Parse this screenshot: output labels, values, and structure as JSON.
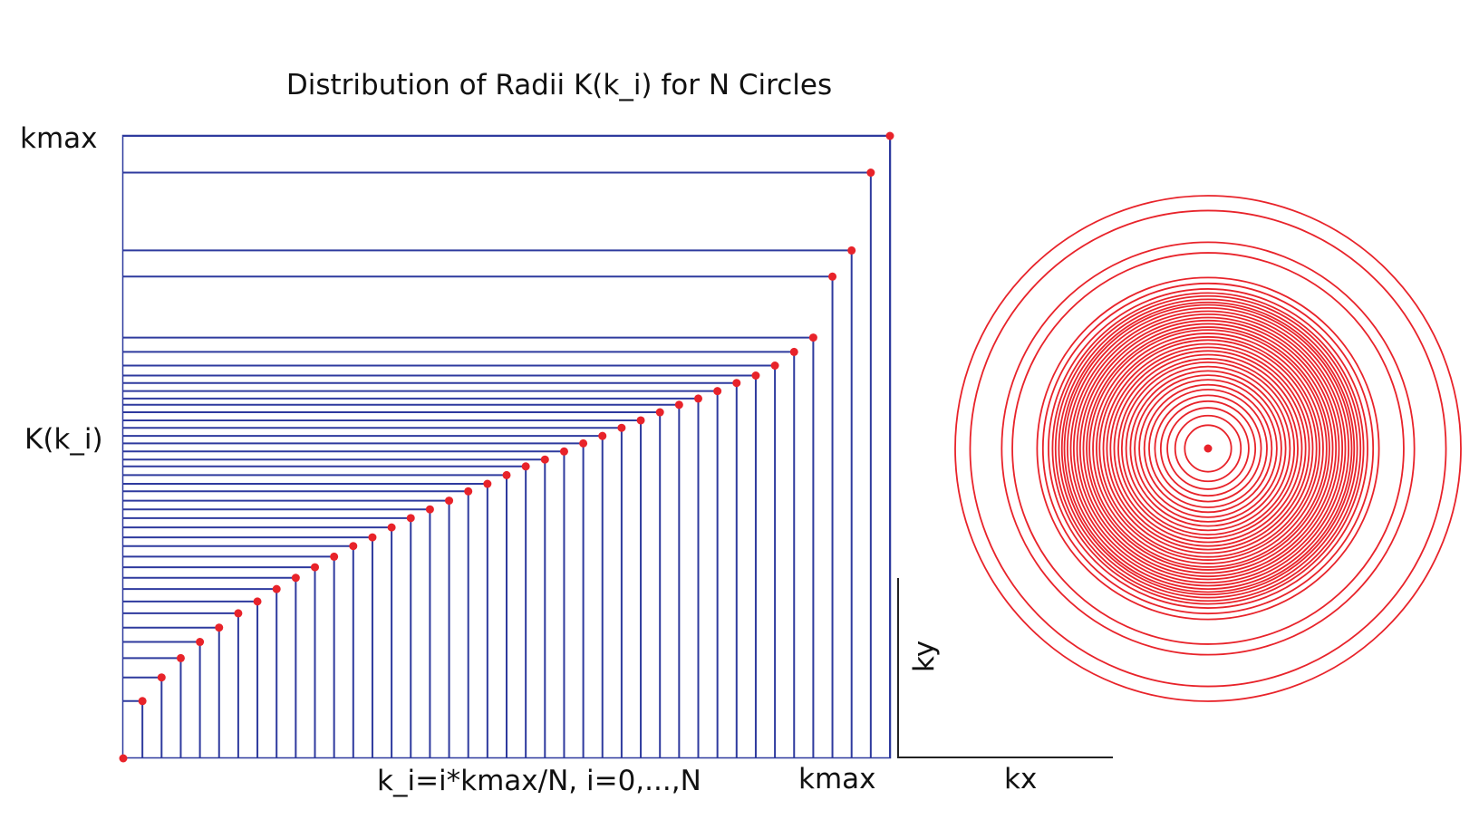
{
  "title": "Distribution of Radii K(k_i) for N Circles",
  "y_axis": {
    "top_label": "kmax",
    "mid_label": "K(k_i)"
  },
  "x_axis": {
    "formula_label": "k_i=i*kmax/N, i=0,...,N",
    "end_label": "kmax"
  },
  "circle_axes": {
    "x_label": "kx",
    "y_label": "ky"
  },
  "chart_data": {
    "type": "step",
    "n_circles": 40,
    "series_color": "#2e3a9e",
    "point_color": "#e8232a",
    "circle_color": "#e8232a",
    "points": [
      [
        0.0,
        0.0
      ],
      [
        0.025,
        0.092
      ],
      [
        0.05,
        0.13
      ],
      [
        0.075,
        0.161
      ],
      [
        0.1,
        0.187
      ],
      [
        0.125,
        0.21
      ],
      [
        0.15,
        0.233
      ],
      [
        0.175,
        0.252
      ],
      [
        0.2,
        0.272
      ],
      [
        0.225,
        0.29
      ],
      [
        0.25,
        0.307
      ],
      [
        0.275,
        0.324
      ],
      [
        0.3,
        0.341
      ],
      [
        0.325,
        0.355
      ],
      [
        0.35,
        0.371
      ],
      [
        0.375,
        0.386
      ],
      [
        0.4,
        0.4
      ],
      [
        0.425,
        0.414
      ],
      [
        0.45,
        0.429
      ],
      [
        0.475,
        0.441
      ],
      [
        0.5,
        0.455
      ],
      [
        0.525,
        0.469
      ],
      [
        0.55,
        0.48
      ],
      [
        0.575,
        0.493
      ],
      [
        0.6,
        0.506
      ],
      [
        0.625,
        0.518
      ],
      [
        0.65,
        0.531
      ],
      [
        0.675,
        0.543
      ],
      [
        0.7,
        0.556
      ],
      [
        0.725,
        0.568
      ],
      [
        0.75,
        0.578
      ],
      [
        0.775,
        0.59
      ],
      [
        0.8,
        0.603
      ],
      [
        0.825,
        0.615
      ],
      [
        0.85,
        0.631
      ],
      [
        0.875,
        0.653
      ],
      [
        0.9,
        0.676
      ],
      [
        0.925,
        0.774
      ],
      [
        0.95,
        0.816
      ],
      [
        0.975,
        0.941
      ],
      [
        1.0,
        1.0
      ]
    ]
  }
}
